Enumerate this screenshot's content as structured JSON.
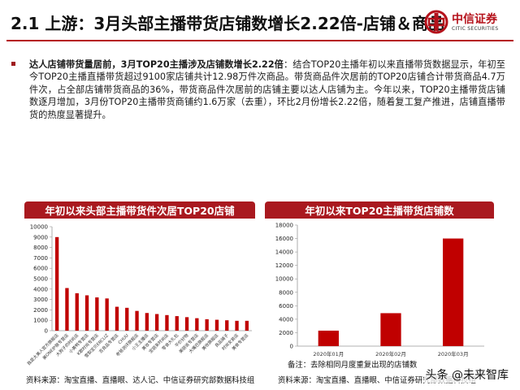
{
  "header": {
    "title": "2.1 上游：3月头部主播带货店铺数增长2.22倍-店铺＆商品",
    "logo_cn": "中信证券",
    "logo_en": "CITIC SECURITIES"
  },
  "bullet": {
    "lead": "达人店铺带货量居前，3月TOP20主播涉及店铺数增长2.22倍",
    "body": "：结合TOP20主播年初以来直播带货数据显示，年初至今TOP20主播直播带货超过9100家店铺共计12.98万件次商品。带货商品件次居前的TOP20店铺合计带货商品4.7万件次，占全部店铺带货商品的36%，带货商品件次居前的店铺主要以达人店铺为主。今年以来，TOP20主播带货店铺数逐月增加，3月份TOP20主播带货商铺约1.6万家（去重），环比2月份增长2.22倍，随着复工复产推进，店铺直播带货的热度显著提升。"
  },
  "left_panel": {
    "header": "年初以来头部主播带货件次居TOP20店铺",
    "source": "资料来源：淘宝直播、直播眼、达人记、中信证券研究部数据科技组"
  },
  "right_panel": {
    "header": "年初以来TOP20主播带货店铺数",
    "note": "备注：去除相同月度重复出现的店铺数",
    "source": "资料来源：淘宝直播、直播眼、中信证券研究部数据科技组"
  },
  "watermark": "头条 @未来智库",
  "colors": {
    "accent": "#a9191f",
    "bar": "#c00000"
  },
  "chart_data": [
    {
      "type": "bar",
      "title": "年初以来头部主播带货件次居TOP20店铺",
      "categories": [
        "我是大美人官方旗舰店",
        "美ONE护肤专营店",
        "大狗子的时尚店",
        "小黄鸭专营店",
        "K歌时尚专营店",
        "雪梨宝贝ERCLIZ",
        "吉良品专营店",
        "CHUU",
        "老爸测评旗舰店",
        "小王主播店",
        "美妆专营店",
        "宝丽来时尚店",
        "零食大礼包",
        "平价好物",
        "美丽说专营店",
        "大嘴巴旗舰店",
        "美妆旗舰店",
        "良品铺子",
        "时尚女装店",
        "美食专营店"
      ],
      "values": [
        9000,
        4100,
        3600,
        3400,
        3200,
        3100,
        2300,
        2200,
        1900,
        1700,
        1600,
        1500,
        1400,
        1300,
        1200,
        1100,
        1050,
        1000,
        950,
        950
      ],
      "ylim": [
        0,
        10000
      ],
      "yticks": [
        0,
        1000,
        2000,
        3000,
        4000,
        5000,
        6000,
        7000,
        8000,
        9000,
        10000
      ]
    },
    {
      "type": "bar",
      "title": "年初以来TOP20主播带货店铺数",
      "categories": [
        "2020年01月",
        "2020年02月",
        "2020年03月"
      ],
      "values": [
        2300,
        4900,
        16000
      ],
      "ylim": [
        0,
        18000
      ],
      "yticks": [
        0,
        2000,
        4000,
        6000,
        8000,
        10000,
        12000,
        14000,
        16000,
        18000
      ]
    }
  ]
}
